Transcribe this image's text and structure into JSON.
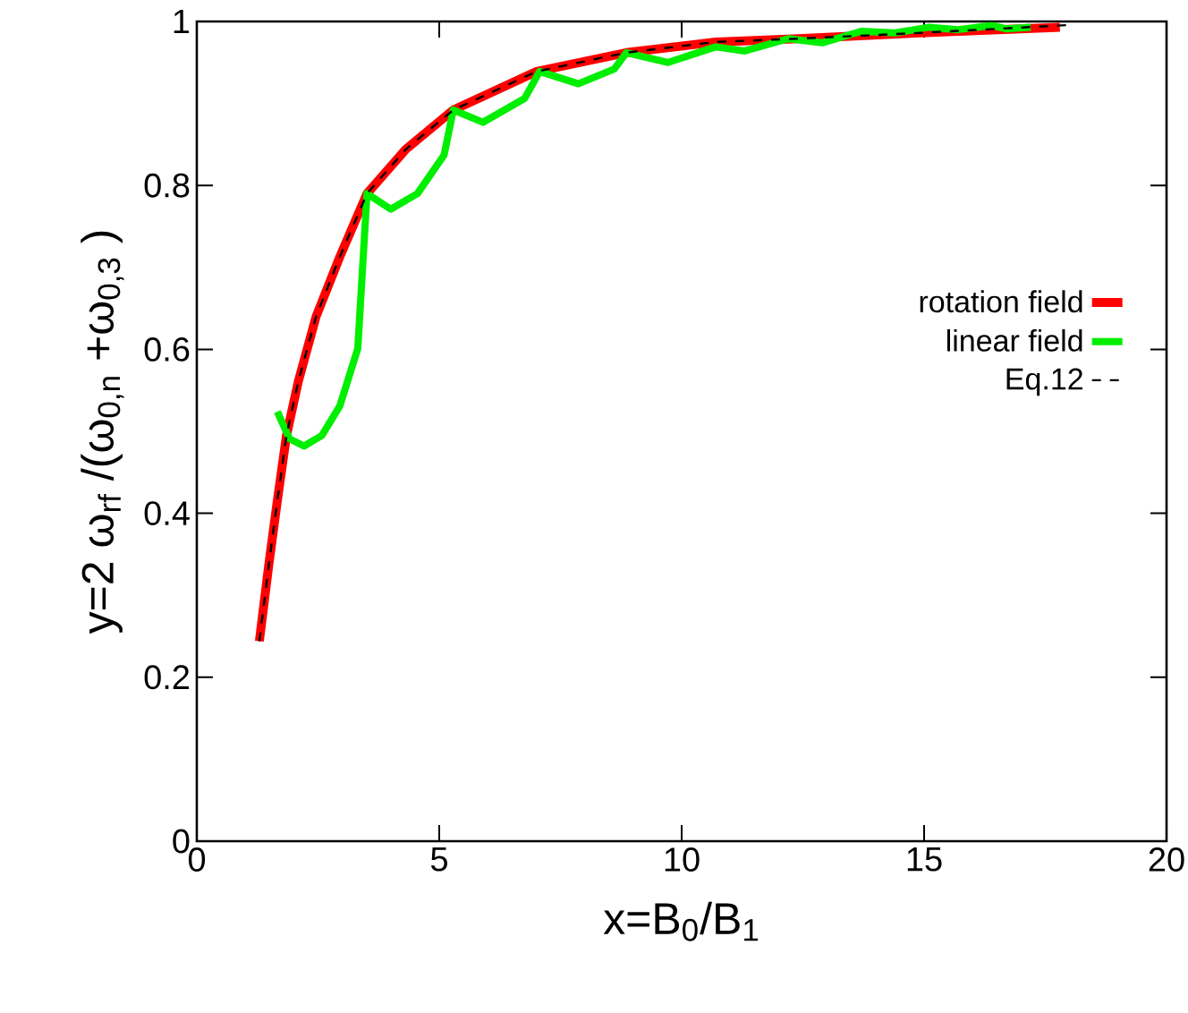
{
  "chart_data": {
    "type": "line",
    "xlabel": "x=B$_{0}$/B$_{1}$",
    "ylabel": "y=2 ω$_{rf}$ /(ω$_{0,n}$ +ω$_{0,3}$ )",
    "xlim": [
      0,
      20
    ],
    "ylim": [
      0,
      1
    ],
    "xticks": [
      0,
      5,
      10,
      15,
      20
    ],
    "yticks": [
      0,
      0.2,
      0.4,
      0.6,
      0.8,
      1
    ],
    "grid": false,
    "legend": "right",
    "marker": "none",
    "series": [
      {
        "name": "rotation field",
        "color": "#ff0000",
        "line_style": "solid",
        "x": [
          1.29,
          1.48,
          1.66,
          1.85,
          2.09,
          2.46,
          2.95,
          3.51,
          4.31,
          5.29,
          7.01,
          8.86,
          10.7,
          12.4,
          14.9,
          17.8
        ],
        "values": [
          0.244,
          0.335,
          0.415,
          0.495,
          0.56,
          0.64,
          0.713,
          0.79,
          0.844,
          0.892,
          0.939,
          0.962,
          0.975,
          0.979,
          0.986,
          0.993
        ]
      },
      {
        "name": "linear field",
        "color": "#00ee00",
        "line_style": "solid",
        "x": [
          1.66,
          1.91,
          2.21,
          2.58,
          2.95,
          3.32,
          3.51,
          4.0,
          4.55,
          5.1,
          5.29,
          5.9,
          6.76,
          7.07,
          7.87,
          8.61,
          8.86,
          9.72,
          10.7,
          11.3,
          12.2,
          12.9,
          13.7,
          14.4,
          15.1,
          15.7,
          16.4,
          16.7,
          17.2
        ],
        "values": [
          0.524,
          0.491,
          0.482,
          0.495,
          0.531,
          0.601,
          0.79,
          0.771,
          0.79,
          0.837,
          0.892,
          0.877,
          0.906,
          0.939,
          0.924,
          0.942,
          0.962,
          0.95,
          0.969,
          0.964,
          0.979,
          0.974,
          0.988,
          0.986,
          0.993,
          0.99,
          0.995,
          0.991,
          0.993
        ]
      },
      {
        "name": "Eq.12",
        "color": "#000000",
        "line_style": "dashed",
        "x": [
          1.29,
          1.48,
          1.66,
          1.85,
          2.09,
          2.46,
          2.95,
          3.51,
          4.31,
          5.29,
          7.01,
          8.86,
          10.7,
          12.4,
          14.9,
          18.1
        ],
        "values": [
          0.244,
          0.335,
          0.415,
          0.495,
          0.56,
          0.64,
          0.713,
          0.79,
          0.844,
          0.892,
          0.939,
          0.962,
          0.975,
          0.979,
          0.986,
          0.996
        ]
      }
    ]
  }
}
